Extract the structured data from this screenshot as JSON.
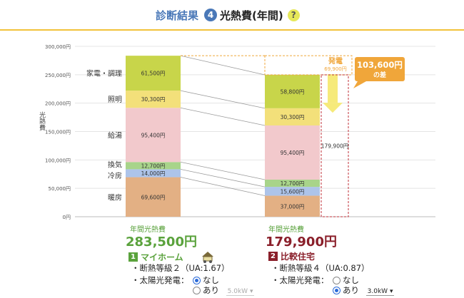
{
  "header": {
    "title": "診断結果",
    "step": "4",
    "subtitle": "光熱費(年間)",
    "help": "?"
  },
  "chart_data": {
    "type": "bar",
    "stacked": true,
    "ylabel": "光熱費",
    "ylim": [
      0,
      300000
    ],
    "y_ticks": [
      "0円",
      "50,000円",
      "100,000円",
      "150,000円",
      "200,000円",
      "250,000円",
      "300,000円"
    ],
    "categories": [
      "マイホーム",
      "比較住宅"
    ],
    "series": [
      {
        "name": "暖房",
        "color": "#e3b084",
        "values": [
          69600,
          37000
        ],
        "labels": [
          "69,600円",
          "37,000円"
        ]
      },
      {
        "name": "冷房",
        "color": "#adc4ea",
        "values": [
          14000,
          15600
        ],
        "labels": [
          "14,000円",
          "15,600円"
        ]
      },
      {
        "name": "換気",
        "color": "#a8d48a",
        "values": [
          12700,
          12700
        ],
        "labels": [
          "12,700円",
          "12,700円"
        ]
      },
      {
        "name": "給湯",
        "color": "#f2c9cc",
        "values": [
          95400,
          95400
        ],
        "labels": [
          "95,400円",
          "95,400円"
        ]
      },
      {
        "name": "照明",
        "color": "#f3e07a",
        "values": [
          30300,
          30300
        ],
        "labels": [
          "30,300円",
          "30,300円"
        ]
      },
      {
        "name": "家電・調理",
        "color": "#c8d54a",
        "values": [
          61500,
          58800
        ],
        "labels": [
          "61,500円",
          "58,800円"
        ]
      }
    ],
    "left_labels": [
      "暖房",
      "冷房",
      "換気",
      "給湯",
      "照明",
      "家電・調理"
    ],
    "generation": {
      "label": "発電",
      "value": 69900,
      "value_label": "69,900円"
    },
    "difference": {
      "value": 103600,
      "label": "103,600円",
      "suffix": "の差"
    },
    "offset_box_label": "179,900円"
  },
  "totals": {
    "caption": "年間光熱費",
    "myhome": "283,500円",
    "compare": "179,900円"
  },
  "myhome": {
    "badge": "1",
    "name": "マイホーム",
    "insulation": "・断熱等級２（UA:1.67）",
    "solar_label": "・太陽光発電：",
    "option_none": "なし",
    "option_yes": "あり",
    "select_value": "5.0kW"
  },
  "compare": {
    "badge": "2",
    "name": "比較住宅",
    "insulation": "・断熱等級４（UA:0.87）",
    "solar_label": "・太陽光発電：",
    "option_none": "なし",
    "option_yes": "あり",
    "select_value": "3.0kW"
  }
}
